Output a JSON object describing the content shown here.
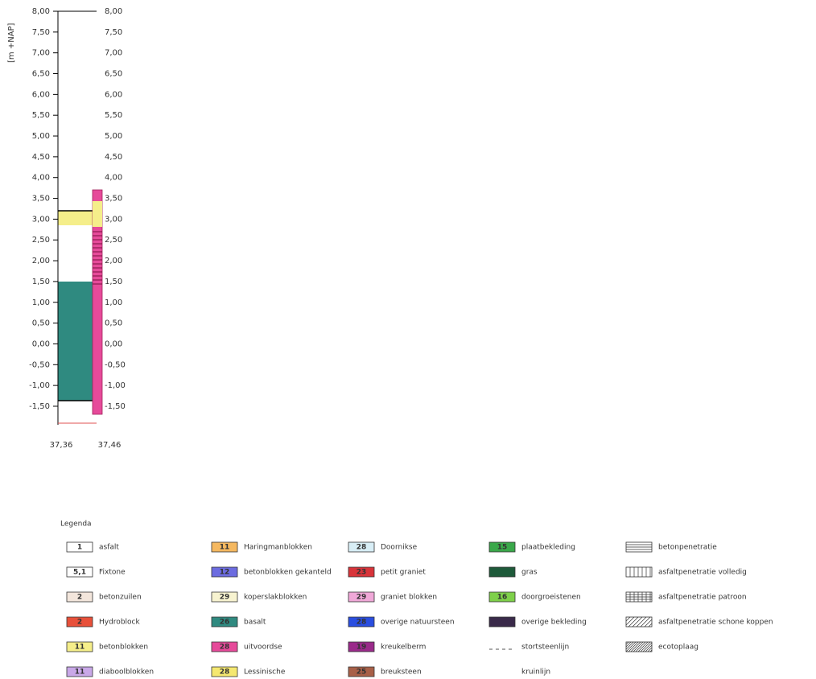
{
  "axis": {
    "label": "[m +NAP]",
    "left_ticks": [
      "8,00",
      "7,50",
      "7,00",
      "6,50",
      "6,00",
      "5,50",
      "5,00",
      "4,50",
      "4,00",
      "3,50",
      "3,00",
      "2,50",
      "2,00",
      "1,50",
      "1,00",
      "0,50",
      "0,00",
      "-0,50",
      "-1,00",
      "-1,50"
    ],
    "right_ticks": [
      "8,00",
      "7,50",
      "7,00",
      "6,50",
      "6,00",
      "5,50",
      "5,00",
      "4,50",
      "4,00",
      "3,50",
      "3,00",
      "2,50",
      "2,00",
      "1,50",
      "1,00",
      "0,50",
      "0,00",
      "-0,50",
      "-1,00",
      "-1,50"
    ]
  },
  "x_labels": [
    "37,36",
    "37,46"
  ],
  "legend": {
    "title": "Legenda",
    "columns": [
      [
        {
          "code": "1",
          "label": "asfalt",
          "color": "#ffffff",
          "swatch": "fill"
        },
        {
          "code": "5,1",
          "label": "Fixtone",
          "color": "#ffffff",
          "swatch": "fill"
        },
        {
          "code": "2",
          "label": "betonzuilen",
          "color": "#f3e6dc",
          "swatch": "fill"
        },
        {
          "code": "2",
          "label": "Hydroblock",
          "color": "#e8503a",
          "swatch": "fill"
        },
        {
          "code": "11",
          "label": "betonblokken",
          "color": "#f5ee8a",
          "swatch": "fill"
        },
        {
          "code": "11",
          "label": "diaboolblokken",
          "color": "#c9a8e8",
          "swatch": "fill"
        }
      ],
      [
        {
          "code": "11",
          "label": "Haringmanblokken",
          "color": "#f5b860",
          "swatch": "fill"
        },
        {
          "code": "12",
          "label": "betonblokken gekanteld",
          "color": "#6c6ce0",
          "swatch": "fill"
        },
        {
          "code": "29",
          "label": "koperslakblokken",
          "color": "#f7f3d0",
          "swatch": "fill"
        },
        {
          "code": "26",
          "label": "basalt",
          "color": "#2f8a80",
          "swatch": "fill"
        },
        {
          "code": "28",
          "label": "uitvoordse",
          "color": "#e64a9a",
          "swatch": "fill"
        },
        {
          "code": "28",
          "label": "Lessinische",
          "color": "#f5e870",
          "swatch": "fill"
        }
      ],
      [
        {
          "code": "28",
          "label": "Doornikse",
          "color": "#d8eef6",
          "swatch": "fill"
        },
        {
          "code": "23",
          "label": "petit graniet",
          "color": "#d8343a",
          "swatch": "fill"
        },
        {
          "code": "29",
          "label": "graniet blokken",
          "color": "#f0a8d8",
          "swatch": "fill"
        },
        {
          "code": "28",
          "label": "overige natuursteen",
          "color": "#2a4ee0",
          "swatch": "fill"
        },
        {
          "code": "19",
          "label": "kreukelberm",
          "color": "#9a2a8a",
          "swatch": "fill"
        },
        {
          "code": "25",
          "label": "breuksteen",
          "color": "#a86048",
          "swatch": "fill"
        }
      ],
      [
        {
          "code": "15",
          "label": "plaatbekleding",
          "color": "#3aa84a",
          "swatch": "fill"
        },
        {
          "label": "gras",
          "color": "#1e5a3a",
          "swatch": "fill"
        },
        {
          "code": "16",
          "label": "doorgroeistenen",
          "color": "#7ed04a",
          "swatch": "fill"
        },
        {
          "label": "overige bekleding",
          "color": "#3a2a4a",
          "swatch": "fill"
        },
        {
          "label": "stortsteenlijn",
          "color": "#555555",
          "swatch": "dash"
        },
        {
          "label": "kruinlijn",
          "color": "#ffffff",
          "swatch": "none"
        }
      ],
      [
        {
          "label": "betonpenetratie",
          "color": "#333333",
          "swatch": "hlines"
        },
        {
          "label": "asfaltpenetratie volledig",
          "color": "#333333",
          "swatch": "vlines"
        },
        {
          "label": "asfaltpenetratie patroon",
          "color": "#333333",
          "swatch": "grid"
        },
        {
          "label": "asfaltpenetratie schone koppen",
          "color": "#333333",
          "swatch": "diag"
        },
        {
          "label": "ecotoplaag",
          "color": "#333333",
          "swatch": "diag2"
        }
      ]
    ]
  }
}
